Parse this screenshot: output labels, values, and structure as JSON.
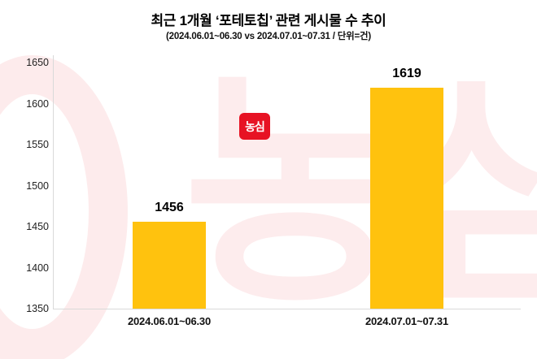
{
  "header": {
    "title": "최근 1개월 ‘포테토칩’ 관련 게시물 수 추이",
    "subtitle": "(2024.06.01~06.30 vs 2024.07.01~07.31  / 단위=건)"
  },
  "watermark": {
    "badge_label": "농심",
    "faint_text": "농심",
    "brand_color": "#e60012"
  },
  "chart_data": {
    "type": "bar",
    "title": "최근 1개월 ‘포테토칩’ 관련 게시물 수 추이",
    "subtitle": "(2024.06.01~06.30 vs 2024.07.01~07.31 / 단위=건)",
    "categories": [
      "2024.06.01~06.30",
      "2024.07.01~07.31"
    ],
    "values": [
      1456,
      1619
    ],
    "data_labels": [
      "1456",
      "1619"
    ],
    "unit_note": "단위=건",
    "xlabel": "",
    "ylabel": "",
    "ylim": [
      1350,
      1650
    ],
    "yticks": [
      1350,
      1400,
      1450,
      1500,
      1550,
      1600,
      1650
    ],
    "bar_color": "#FFC20E",
    "grid": false,
    "legend": "none"
  }
}
